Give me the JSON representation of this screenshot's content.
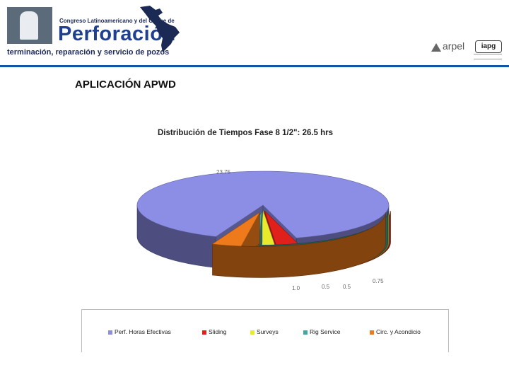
{
  "header": {
    "brand_small": "Congreso Latinoamericano y del Caribe de",
    "brand_big": "Perforación",
    "brand_sub": "terminación, reparación y servicio de pozos",
    "arpel": "arpel",
    "iapg": "iapg"
  },
  "slide": {
    "title": "APLICACIÓN APWD"
  },
  "colors": {
    "perf": "#8c8ee6",
    "sliding": "#e0201b",
    "surveys": "#eaea2c",
    "rig": "#3fa8a0",
    "circ": "#ef7a1c",
    "accent": "#0f57a6"
  },
  "chart_data": {
    "type": "pie",
    "title": "Distribución de Tiempos Fase 8 1/2\": 26.5 hrs",
    "series": [
      {
        "name": "Perf. Horas Efectivas",
        "value": 23.75,
        "label": "23.75",
        "color": "#8c8ee6"
      },
      {
        "name": "Sliding",
        "value": 0.75,
        "label": "0.75",
        "color": "#e0201b"
      },
      {
        "name": "Surveys",
        "value": 0.5,
        "label": "0.5",
        "color": "#eaea2c"
      },
      {
        "name": "Rig Service",
        "value": 0.5,
        "label": "0.5",
        "color": "#3fa8a0"
      },
      {
        "name": "Circ. y Acondicio",
        "value": 1.0,
        "label": "1.0",
        "color": "#ef7a1c"
      }
    ],
    "legend_position": "bottom",
    "style": "3d-exploded"
  }
}
